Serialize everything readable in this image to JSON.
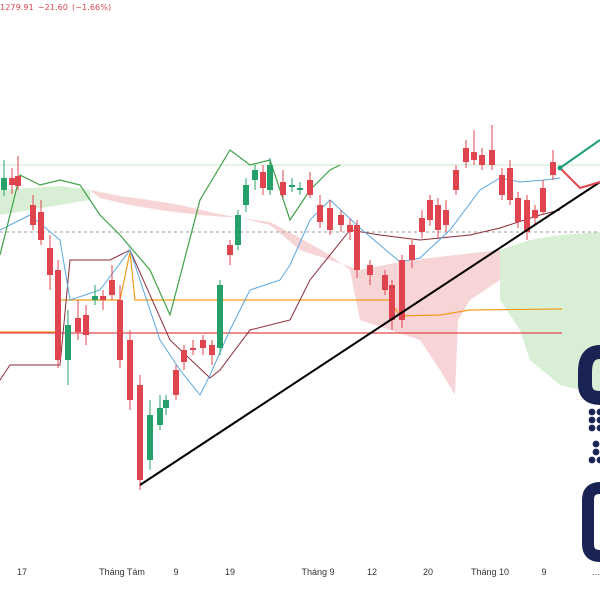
{
  "header": {
    "close_value": "1279.91",
    "change_value": "−21.60",
    "change_pct": "(−1.66%)"
  },
  "chart_data": {
    "type": "candlestick",
    "x_axis": {
      "tick_labels": [
        "17",
        "Tháng Tám",
        "9",
        "19",
        "Tháng 9",
        "12",
        "20",
        "Tháng 10",
        "9"
      ]
    },
    "reference_levels": [
      {
        "name": "orange-horizontal",
        "color": "#f29b18",
        "value": 1265
      },
      {
        "name": "red-horizontal",
        "color": "#e0454f",
        "value": 1262
      },
      {
        "name": "dashed-gray",
        "color": "#9e9e9e",
        "value": 1298
      },
      {
        "name": "light-green-top",
        "color": "#c9e9c6",
        "value": 1305
      }
    ],
    "trendlines": [
      {
        "name": "black-support-trendline",
        "color": "#000000"
      },
      {
        "name": "green-projection",
        "color": "#1f9e7a"
      },
      {
        "name": "red-projection",
        "color": "#e0454f"
      }
    ],
    "series": [
      {
        "name": "candles",
        "colors": {
          "up": "#26a06a",
          "down": "#e0454f"
        }
      },
      {
        "name": "ichimoku-cloud-bullish",
        "color": "#d8efd5"
      },
      {
        "name": "ichimoku-cloud-bearish",
        "color": "#f7d4d6"
      },
      {
        "name": "conversion-line",
        "color": "#5aa7e0"
      },
      {
        "name": "base-line",
        "color": "#8a2b37"
      },
      {
        "name": "lagging-span",
        "color": "#3fa247"
      }
    ]
  },
  "logo": {
    "color": "#1a2454"
  }
}
